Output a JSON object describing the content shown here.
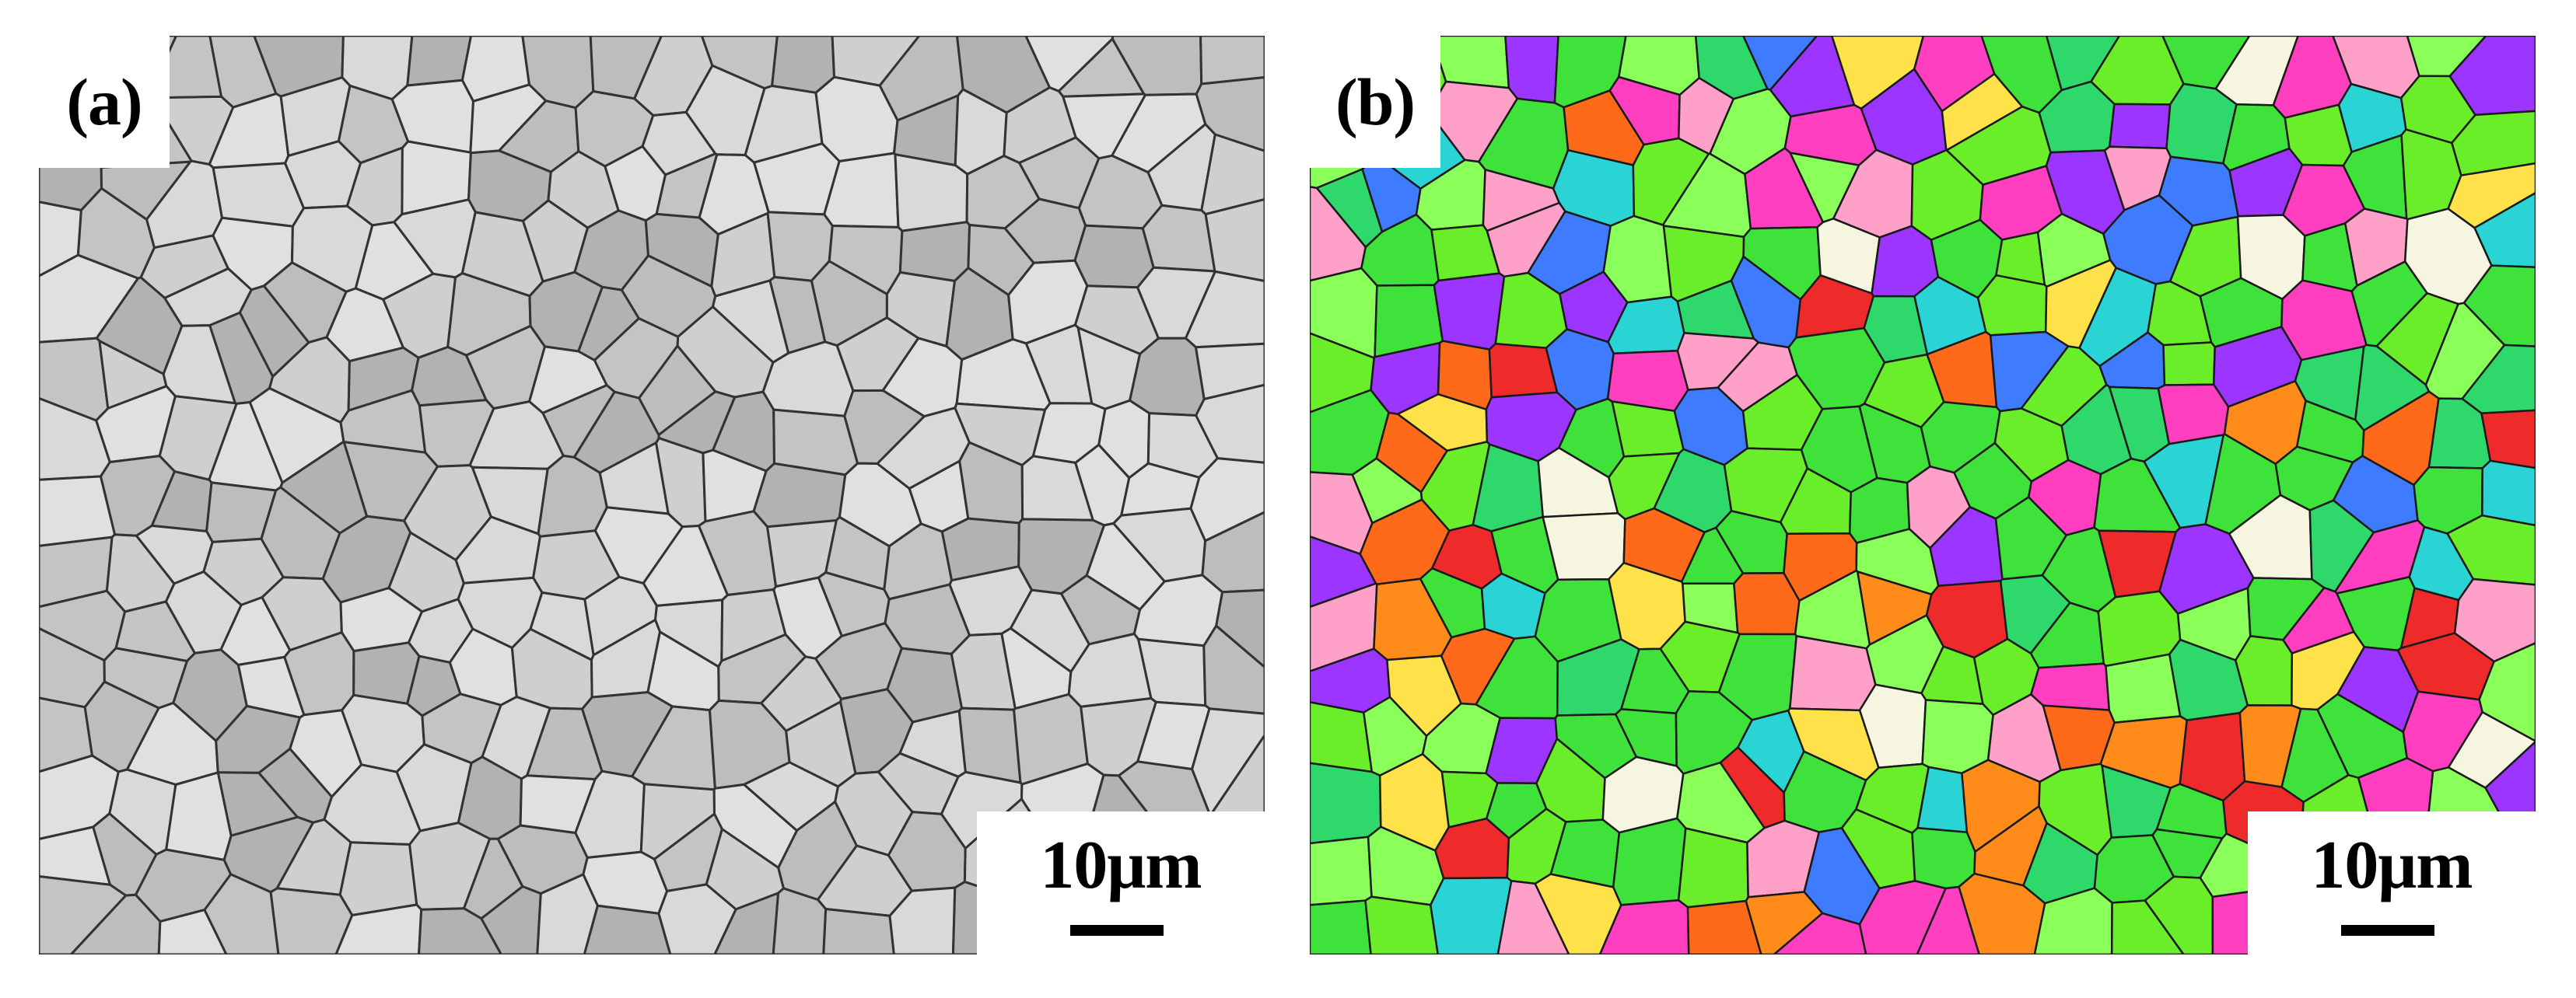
{
  "panels": [
    {
      "id": "a",
      "label": "(a)",
      "scale_label": "10μm",
      "style": "grayscale",
      "colors": {
        "grain_fill": [
          "#cfcfcf",
          "#bdbdbd",
          "#d9d9d9",
          "#c4c4c4",
          "#b2b2b2",
          "#e0e0e0"
        ],
        "boundary": "#333333"
      }
    },
    {
      "id": "b",
      "label": "(b)",
      "scale_label": "10μm",
      "style": "orientation-map",
      "colors": {
        "grain_fill": [
          "#3ee23a",
          "#6aee2a",
          "#2fd86a",
          "#ee2a2a",
          "#ff6a1a",
          "#ff3fbf",
          "#9b35ff",
          "#3f7bff",
          "#ffe24a",
          "#ffa0c8",
          "#2ad4d4",
          "#f5f5e0",
          "#ff8c1a",
          "#8aff5a"
        ],
        "boundary": "#1a1a1a"
      }
    }
  ]
}
